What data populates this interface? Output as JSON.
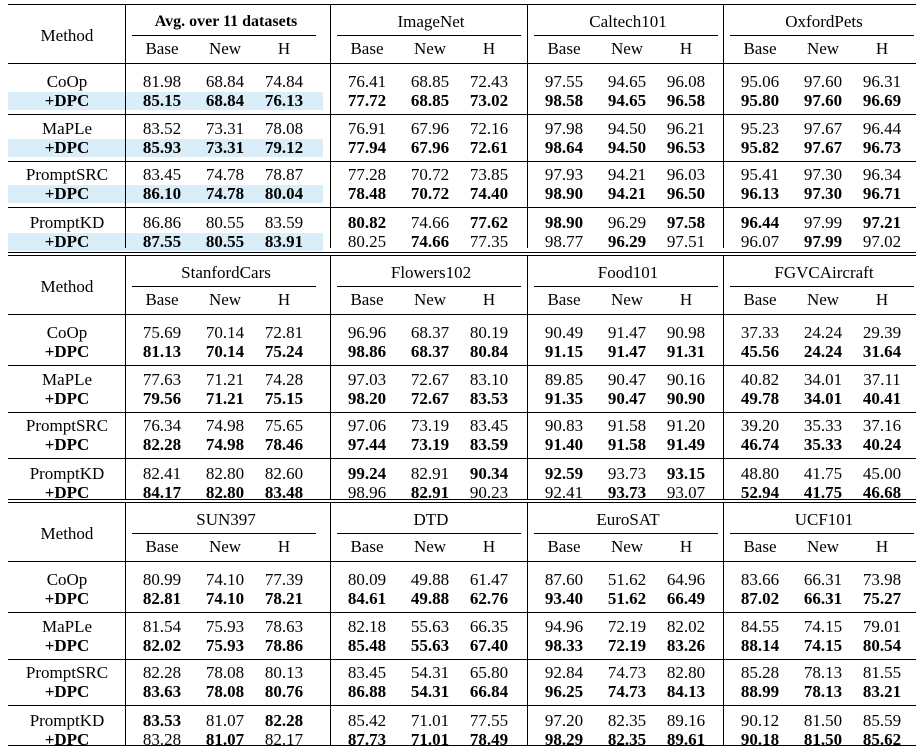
{
  "method_label": "Method",
  "sub_cols": [
    "Base",
    "New",
    "H"
  ],
  "blocks": [
    {
      "datasets": [
        "Avg. over 11 datasets",
        "ImageNet",
        "Caltech101",
        "OxfordPets"
      ],
      "rows": [
        {
          "name": "CoOp",
          "values": [
            "81.98",
            "68.84",
            "74.84",
            "76.41",
            "68.85",
            "72.43",
            "97.55",
            "94.65",
            "96.08",
            "95.06",
            "97.60",
            "96.31"
          ],
          "bold": [
            0,
            0,
            0,
            0,
            0,
            0,
            0,
            0,
            0,
            0,
            0,
            0
          ]
        },
        {
          "name": "+DPC",
          "values": [
            "85.15",
            "68.84",
            "76.13",
            "77.72",
            "68.85",
            "73.02",
            "98.58",
            "94.65",
            "96.58",
            "95.80",
            "97.60",
            "96.69"
          ],
          "bold": [
            1,
            1,
            1,
            1,
            1,
            1,
            1,
            1,
            1,
            1,
            1,
            1
          ]
        },
        {
          "name": "MaPLe",
          "values": [
            "83.52",
            "73.31",
            "78.08",
            "76.91",
            "67.96",
            "72.16",
            "97.98",
            "94.50",
            "96.21",
            "95.23",
            "97.67",
            "96.44"
          ],
          "bold": [
            0,
            0,
            0,
            0,
            0,
            0,
            0,
            0,
            0,
            0,
            0,
            0
          ]
        },
        {
          "name": "+DPC",
          "values": [
            "85.93",
            "73.31",
            "79.12",
            "77.94",
            "67.96",
            "72.61",
            "98.64",
            "94.50",
            "96.53",
            "95.82",
            "97.67",
            "96.73"
          ],
          "bold": [
            1,
            1,
            1,
            1,
            1,
            1,
            1,
            1,
            1,
            1,
            1,
            1
          ]
        },
        {
          "name": "PromptSRC",
          "values": [
            "83.45",
            "74.78",
            "78.87",
            "77.28",
            "70.72",
            "73.85",
            "97.93",
            "94.21",
            "96.03",
            "95.41",
            "97.30",
            "96.34"
          ],
          "bold": [
            0,
            0,
            0,
            0,
            0,
            0,
            0,
            0,
            0,
            0,
            0,
            0
          ]
        },
        {
          "name": "+DPC",
          "values": [
            "86.10",
            "74.78",
            "80.04",
            "78.48",
            "70.72",
            "74.40",
            "98.90",
            "94.21",
            "96.50",
            "96.13",
            "97.30",
            "96.71"
          ],
          "bold": [
            1,
            1,
            1,
            1,
            1,
            1,
            1,
            1,
            1,
            1,
            1,
            1
          ]
        },
        {
          "name": "PromptKD",
          "values": [
            "86.86",
            "80.55",
            "83.59",
            "80.82",
            "74.66",
            "77.62",
            "98.90",
            "96.29",
            "97.58",
            "96.44",
            "97.99",
            "97.21"
          ],
          "bold": [
            0,
            0,
            0,
            1,
            0,
            1,
            1,
            0,
            1,
            1,
            0,
            1
          ]
        },
        {
          "name": "+DPC",
          "values": [
            "87.55",
            "80.55",
            "83.91",
            "80.25",
            "74.66",
            "77.35",
            "98.77",
            "96.29",
            "97.51",
            "96.07",
            "97.99",
            "97.02"
          ],
          "bold": [
            1,
            1,
            1,
            0,
            1,
            0,
            0,
            1,
            0,
            0,
            1,
            0
          ]
        }
      ]
    },
    {
      "datasets": [
        "StanfordCars",
        "Flowers102",
        "Food101",
        "FGVCAircraft"
      ],
      "rows": [
        {
          "name": "CoOp",
          "values": [
            "75.69",
            "70.14",
            "72.81",
            "96.96",
            "68.37",
            "80.19",
            "90.49",
            "91.47",
            "90.98",
            "37.33",
            "24.24",
            "29.39"
          ],
          "bold": [
            0,
            0,
            0,
            0,
            0,
            0,
            0,
            0,
            0,
            0,
            0,
            0
          ]
        },
        {
          "name": "+DPC",
          "values": [
            "81.13",
            "70.14",
            "75.24",
            "98.86",
            "68.37",
            "80.84",
            "91.15",
            "91.47",
            "91.31",
            "45.56",
            "24.24",
            "31.64"
          ],
          "bold": [
            1,
            1,
            1,
            1,
            1,
            1,
            1,
            1,
            1,
            1,
            1,
            1
          ]
        },
        {
          "name": "MaPLe",
          "values": [
            "77.63",
            "71.21",
            "74.28",
            "97.03",
            "72.67",
            "83.10",
            "89.85",
            "90.47",
            "90.16",
            "40.82",
            "34.01",
            "37.11"
          ],
          "bold": [
            0,
            0,
            0,
            0,
            0,
            0,
            0,
            0,
            0,
            0,
            0,
            0
          ]
        },
        {
          "name": "+DPC",
          "values": [
            "79.56",
            "71.21",
            "75.15",
            "98.20",
            "72.67",
            "83.53",
            "91.35",
            "90.47",
            "90.90",
            "49.78",
            "34.01",
            "40.41"
          ],
          "bold": [
            1,
            1,
            1,
            1,
            1,
            1,
            1,
            1,
            1,
            1,
            1,
            1
          ]
        },
        {
          "name": "PromptSRC",
          "values": [
            "76.34",
            "74.98",
            "75.65",
            "97.06",
            "73.19",
            "83.45",
            "90.83",
            "91.58",
            "91.20",
            "39.20",
            "35.33",
            "37.16"
          ],
          "bold": [
            0,
            0,
            0,
            0,
            0,
            0,
            0,
            0,
            0,
            0,
            0,
            0
          ]
        },
        {
          "name": "+DPC",
          "values": [
            "82.28",
            "74.98",
            "78.46",
            "97.44",
            "73.19",
            "83.59",
            "91.40",
            "91.58",
            "91.49",
            "46.74",
            "35.33",
            "40.24"
          ],
          "bold": [
            1,
            1,
            1,
            1,
            1,
            1,
            1,
            1,
            1,
            1,
            1,
            1
          ]
        },
        {
          "name": "PromptKD",
          "values": [
            "82.41",
            "82.80",
            "82.60",
            "99.24",
            "82.91",
            "90.34",
            "92.59",
            "93.73",
            "93.15",
            "48.80",
            "41.75",
            "45.00"
          ],
          "bold": [
            0,
            0,
            0,
            1,
            0,
            1,
            1,
            0,
            1,
            0,
            0,
            0
          ]
        },
        {
          "name": "+DPC",
          "values": [
            "84.17",
            "82.80",
            "83.48",
            "98.96",
            "82.91",
            "90.23",
            "92.41",
            "93.73",
            "93.07",
            "52.94",
            "41.75",
            "46.68"
          ],
          "bold": [
            1,
            1,
            1,
            0,
            1,
            0,
            0,
            1,
            0,
            1,
            1,
            1
          ]
        }
      ]
    },
    {
      "datasets": [
        "SUN397",
        "DTD",
        "EuroSAT",
        "UCF101"
      ],
      "rows": [
        {
          "name": "CoOp",
          "values": [
            "80.99",
            "74.10",
            "77.39",
            "80.09",
            "49.88",
            "61.47",
            "87.60",
            "51.62",
            "64.96",
            "83.66",
            "66.31",
            "73.98"
          ],
          "bold": [
            0,
            0,
            0,
            0,
            0,
            0,
            0,
            0,
            0,
            0,
            0,
            0
          ]
        },
        {
          "name": "+DPC",
          "values": [
            "82.81",
            "74.10",
            "78.21",
            "84.61",
            "49.88",
            "62.76",
            "93.40",
            "51.62",
            "66.49",
            "87.02",
            "66.31",
            "75.27"
          ],
          "bold": [
            1,
            1,
            1,
            1,
            1,
            1,
            1,
            1,
            1,
            1,
            1,
            1
          ]
        },
        {
          "name": "MaPLe",
          "values": [
            "81.54",
            "75.93",
            "78.63",
            "82.18",
            "55.63",
            "66.35",
            "94.96",
            "72.19",
            "82.02",
            "84.55",
            "74.15",
            "79.01"
          ],
          "bold": [
            0,
            0,
            0,
            0,
            0,
            0,
            0,
            0,
            0,
            0,
            0,
            0
          ]
        },
        {
          "name": "+DPC",
          "values": [
            "82.02",
            "75.93",
            "78.86",
            "85.48",
            "55.63",
            "67.40",
            "98.33",
            "72.19",
            "83.26",
            "88.14",
            "74.15",
            "80.54"
          ],
          "bold": [
            1,
            1,
            1,
            1,
            1,
            1,
            1,
            1,
            1,
            1,
            1,
            1
          ]
        },
        {
          "name": "PromptSRC",
          "values": [
            "82.28",
            "78.08",
            "80.13",
            "83.45",
            "54.31",
            "65.80",
            "92.84",
            "74.73",
            "82.80",
            "85.28",
            "78.13",
            "81.55"
          ],
          "bold": [
            0,
            0,
            0,
            0,
            0,
            0,
            0,
            0,
            0,
            0,
            0,
            0
          ]
        },
        {
          "name": "+DPC",
          "values": [
            "83.63",
            "78.08",
            "80.76",
            "86.88",
            "54.31",
            "66.84",
            "96.25",
            "74.73",
            "84.13",
            "88.99",
            "78.13",
            "83.21"
          ],
          "bold": [
            1,
            1,
            1,
            1,
            1,
            1,
            1,
            1,
            1,
            1,
            1,
            1
          ]
        },
        {
          "name": "PromptKD",
          "values": [
            "83.53",
            "81.07",
            "82.28",
            "85.42",
            "71.01",
            "77.55",
            "97.20",
            "82.35",
            "89.16",
            "90.12",
            "81.50",
            "85.59"
          ],
          "bold": [
            1,
            0,
            1,
            0,
            0,
            0,
            0,
            0,
            0,
            0,
            0,
            0
          ]
        },
        {
          "name": "+DPC",
          "values": [
            "83.28",
            "81.07",
            "82.17",
            "87.73",
            "71.01",
            "78.49",
            "98.29",
            "82.35",
            "89.61",
            "90.18",
            "81.50",
            "85.62"
          ],
          "bold": [
            0,
            1,
            0,
            1,
            1,
            1,
            1,
            1,
            1,
            1,
            1,
            1
          ]
        }
      ]
    }
  ]
}
